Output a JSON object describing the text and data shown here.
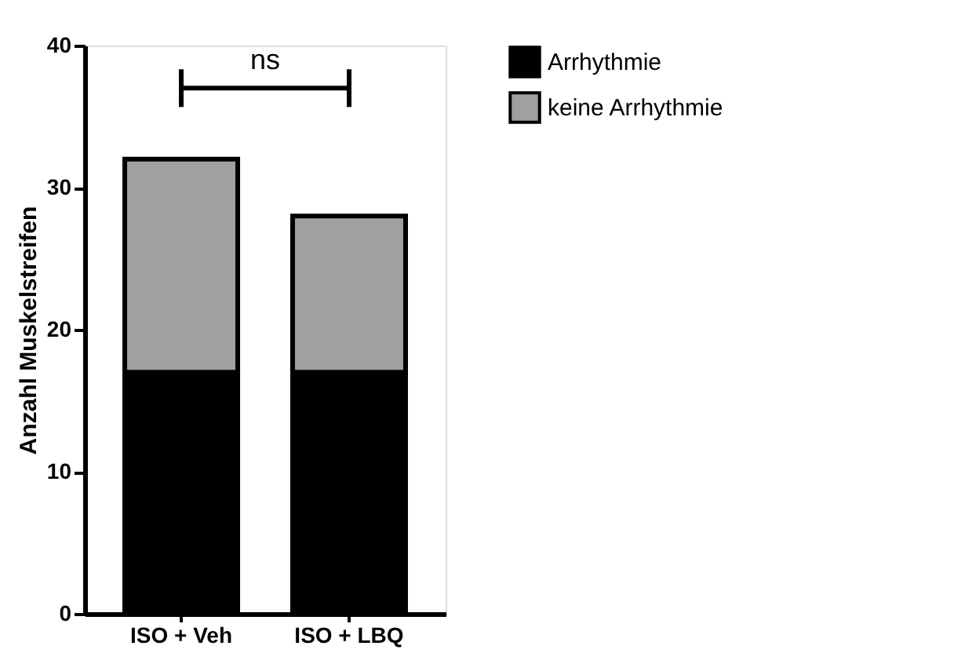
{
  "chart_data": {
    "type": "bar",
    "ylabel": "Anzahl Muskelstreifen",
    "categories": [
      "ISO + Veh",
      "ISO + LBQ"
    ],
    "series": [
      {
        "name": "Arrhythmie",
        "color": "#000000",
        "values": [
          17,
          17
        ]
      },
      {
        "name": "keine Arrhythmie",
        "color": "#a0a0a0",
        "values": [
          15,
          11
        ]
      }
    ],
    "stacked": true,
    "ylim": [
      0,
      40
    ],
    "yticks": [
      0,
      10,
      20,
      30,
      40
    ],
    "grid": false,
    "legend": "right",
    "annotations": [
      "ns"
    ]
  }
}
